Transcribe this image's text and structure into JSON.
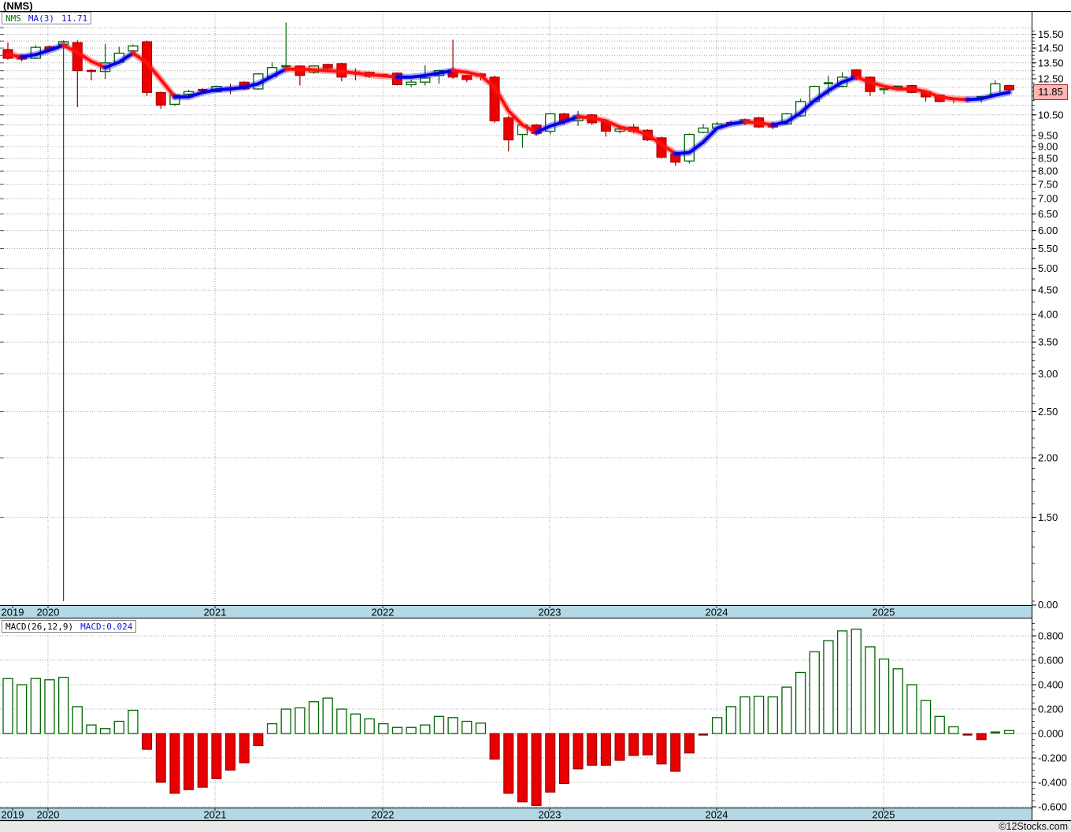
{
  "title": "(NMS)",
  "branding": "©12Stocks.com",
  "price_panel": {
    "legend": {
      "symbol": "NMS",
      "ma_label": "MA(3)",
      "ma_value": "11.71"
    },
    "last_price_badge": "11.85",
    "y_axis_labels": [
      {
        "t": "15.50",
        "v": 15.5
      },
      {
        "t": "14.50",
        "v": 14.5
      },
      {
        "t": "13.50",
        "v": 13.5
      },
      {
        "t": "12.50",
        "v": 12.5
      },
      {
        "t": "10.50",
        "v": 10.5
      },
      {
        "t": "9.50",
        "v": 9.5
      },
      {
        "t": "9.00",
        "v": 9.0
      },
      {
        "t": "8.50",
        "v": 8.5
      },
      {
        "t": "8.00",
        "v": 8.0
      },
      {
        "t": "7.50",
        "v": 7.5
      },
      {
        "t": "7.00",
        "v": 7.0
      },
      {
        "t": "6.50",
        "v": 6.5
      },
      {
        "t": "6.00",
        "v": 6.0
      },
      {
        "t": "5.50",
        "v": 5.5
      },
      {
        "t": "5.00",
        "v": 5.0
      },
      {
        "t": "4.50",
        "v": 4.5
      },
      {
        "t": "4.00",
        "v": 4.0
      },
      {
        "t": "3.50",
        "v": 3.5
      },
      {
        "t": "3.00",
        "v": 3.0
      },
      {
        "t": "2.50",
        "v": 2.5
      },
      {
        "t": "2.00",
        "v": 2.0
      },
      {
        "t": "1.50",
        "v": 1.5
      }
    ],
    "bottom_label": "0.00"
  },
  "macd_panel": {
    "legend_left": "MACD(26,12,9)",
    "legend_right": "MACD:0.024",
    "y_axis_labels": [
      {
        "t": "0.800",
        "v": 0.8
      },
      {
        "t": "0.600",
        "v": 0.6
      },
      {
        "t": "0.400",
        "v": 0.4
      },
      {
        "t": "0.200",
        "v": 0.2
      },
      {
        "t": "0.000",
        "v": 0.0
      },
      {
        "t": "-0.200",
        "v": -0.2
      },
      {
        "t": "-0.400",
        "v": -0.4
      },
      {
        "t": "-0.600",
        "v": -0.6
      }
    ]
  },
  "x_axis": {
    "years": [
      "2019",
      "2020",
      "2021",
      "2022",
      "2023",
      "2024",
      "2025"
    ],
    "tick_x": [
      16,
      61,
      273,
      486,
      698,
      910,
      1122
    ],
    "gridline_x": [
      61,
      273,
      486,
      698,
      910,
      1122
    ]
  },
  "colors": {
    "candle_up_stroke": "#006400",
    "candle_down_fill": "#ee0000",
    "candle_down_stroke": "#990000",
    "ma_up": "#0000e6",
    "ma_down": "#ff0f0f",
    "macd_pos_stroke": "#006400",
    "macd_neg_fill": "#e80000",
    "macd_neg_stroke": "#880000",
    "grid": "#a8a8a8",
    "axis_strip": "#b4d9e6",
    "badge_bg": "#ffb4b4",
    "bottom_band": "#e9e9e9"
  },
  "chart_data": [
    {
      "type": "candlestick",
      "title": "(NMS)",
      "series_name": "NMS",
      "overlay": "MA(3)",
      "overlay_last_value": 11.71,
      "last_close": 11.85,
      "scale": "log",
      "ylim_shown": [
        0.0,
        16.0
      ],
      "grid": true,
      "candles_ohlc": [
        [
          14.4,
          14.9,
          13.7,
          13.8
        ],
        [
          13.95,
          14.05,
          13.6,
          13.75
        ],
        [
          13.8,
          14.7,
          13.75,
          14.55
        ],
        [
          14.6,
          14.7,
          14.25,
          14.35
        ],
        [
          14.75,
          15.05,
          1.0,
          14.95
        ],
        [
          14.9,
          15.05,
          10.9,
          13.0
        ],
        [
          13.0,
          13.1,
          12.4,
          12.95
        ],
        [
          12.95,
          14.8,
          12.5,
          13.5
        ],
        [
          13.55,
          14.6,
          13.5,
          14.15
        ],
        [
          14.3,
          14.75,
          14.2,
          14.65
        ],
        [
          14.95,
          15.05,
          11.5,
          11.7
        ],
        [
          11.7,
          11.75,
          10.8,
          11.0
        ],
        [
          11.05,
          11.65,
          10.95,
          11.55
        ],
        [
          11.6,
          11.85,
          11.5,
          11.75
        ],
        [
          11.85,
          11.95,
          11.65,
          11.75
        ],
        [
          11.75,
          12.1,
          11.7,
          12.05
        ],
        [
          11.95,
          12.2,
          11.6,
          11.9
        ],
        [
          12.3,
          12.35,
          11.85,
          11.9
        ],
        [
          11.9,
          12.85,
          11.85,
          12.8
        ],
        [
          12.65,
          13.55,
          12.6,
          13.2
        ],
        [
          13.2,
          16.4,
          13.1,
          13.3
        ],
        [
          13.3,
          13.35,
          12.1,
          12.7
        ],
        [
          12.9,
          13.35,
          12.8,
          13.3
        ],
        [
          13.4,
          13.45,
          12.9,
          13.15
        ],
        [
          13.45,
          13.5,
          12.35,
          12.6
        ],
        [
          12.9,
          13.15,
          12.4,
          12.85
        ],
        [
          12.9,
          12.95,
          12.55,
          12.65
        ],
        [
          12.75,
          12.8,
          12.6,
          12.65
        ],
        [
          12.85,
          12.9,
          12.1,
          12.15
        ],
        [
          12.15,
          12.45,
          12.0,
          12.3
        ],
        [
          12.3,
          13.35,
          12.1,
          12.55
        ],
        [
          12.7,
          13.05,
          12.2,
          13.0
        ],
        [
          13.05,
          15.1,
          12.5,
          12.6
        ],
        [
          12.7,
          12.75,
          12.3,
          12.45
        ],
        [
          12.8,
          12.85,
          12.4,
          12.65
        ],
        [
          12.6,
          12.7,
          10.1,
          10.2
        ],
        [
          10.35,
          10.45,
          8.8,
          9.3
        ],
        [
          9.55,
          10.1,
          8.95,
          10.0
        ],
        [
          10.0,
          10.05,
          9.5,
          9.6
        ],
        [
          9.7,
          10.6,
          9.55,
          10.55
        ],
        [
          10.55,
          10.6,
          10.0,
          10.15
        ],
        [
          10.2,
          10.7,
          9.95,
          10.45
        ],
        [
          10.5,
          10.55,
          10.0,
          10.1
        ],
        [
          10.15,
          10.2,
          9.45,
          9.7
        ],
        [
          9.7,
          9.9,
          9.6,
          9.8
        ],
        [
          9.9,
          10.05,
          9.6,
          9.7
        ],
        [
          9.75,
          9.8,
          9.25,
          9.3
        ],
        [
          9.4,
          9.45,
          8.5,
          8.55
        ],
        [
          8.7,
          8.75,
          8.2,
          8.35
        ],
        [
          8.4,
          9.6,
          8.3,
          9.55
        ],
        [
          9.65,
          10.05,
          9.6,
          9.85
        ],
        [
          9.85,
          10.15,
          9.8,
          10.05
        ],
        [
          10.1,
          10.2,
          9.95,
          10.05
        ],
        [
          10.1,
          10.3,
          10.0,
          10.25
        ],
        [
          10.35,
          10.4,
          9.85,
          9.9
        ],
        [
          10.05,
          10.15,
          9.8,
          9.9
        ],
        [
          10.05,
          10.6,
          10.0,
          10.55
        ],
        [
          10.45,
          11.35,
          10.4,
          11.2
        ],
        [
          11.2,
          12.1,
          11.15,
          12.05
        ],
        [
          12.15,
          12.7,
          11.55,
          12.25
        ],
        [
          12.05,
          12.9,
          12.0,
          12.6
        ],
        [
          13.05,
          13.1,
          12.4,
          12.5
        ],
        [
          12.6,
          12.65,
          11.5,
          11.75
        ],
        [
          11.85,
          11.95,
          11.6,
          11.9
        ],
        [
          11.95,
          12.1,
          11.9,
          12.05
        ],
        [
          12.1,
          12.15,
          11.65,
          11.7
        ],
        [
          11.75,
          11.8,
          11.2,
          11.45
        ],
        [
          11.55,
          11.6,
          11.15,
          11.2
        ],
        [
          11.25,
          11.4,
          11.1,
          11.35
        ],
        [
          11.35,
          11.4,
          11.2,
          11.3
        ],
        [
          11.35,
          11.5,
          11.15,
          11.45
        ],
        [
          11.6,
          12.4,
          11.55,
          12.2
        ],
        [
          12.1,
          12.15,
          11.8,
          11.85
        ]
      ],
      "ma3_values": [
        14.05,
        13.9,
        14.05,
        14.35,
        14.7,
        14.2,
        13.6,
        13.2,
        13.55,
        14.15,
        13.5,
        12.45,
        11.45,
        11.45,
        11.7,
        11.85,
        11.9,
        12.0,
        12.2,
        12.65,
        13.1,
        13.1,
        13.05,
        13.0,
        12.95,
        12.85,
        12.75,
        12.68,
        12.6,
        12.6,
        12.7,
        12.85,
        13.0,
        12.9,
        12.7,
        12.0,
        10.7,
        10.0,
        9.65,
        9.95,
        10.15,
        10.4,
        10.35,
        10.2,
        9.9,
        9.75,
        9.55,
        9.1,
        8.7,
        8.75,
        9.2,
        9.85,
        10.05,
        10.15,
        10.1,
        10.0,
        10.15,
        10.6,
        11.25,
        11.8,
        12.3,
        12.6,
        12.3,
        12.05,
        11.9,
        11.9,
        11.75,
        11.45,
        11.35,
        11.3,
        11.35,
        11.55,
        11.71
      ],
      "ma3_segment_trend": [
        "",
        "R",
        "B",
        "B",
        "B",
        "R",
        "R",
        "R",
        "B",
        "B",
        "R",
        "R",
        "R",
        "B",
        "B",
        "B",
        "B",
        "B",
        "B",
        "B",
        "B",
        "R",
        "R",
        "R",
        "R",
        "R",
        "R",
        "R",
        "R",
        "B",
        "B",
        "B",
        "B",
        "R",
        "R",
        "R",
        "R",
        "R",
        "R",
        "B",
        "B",
        "B",
        "R",
        "R",
        "R",
        "R",
        "R",
        "R",
        "R",
        "B",
        "B",
        "B",
        "B",
        "B",
        "R",
        "R",
        "B",
        "B",
        "B",
        "B",
        "B",
        "B",
        "R",
        "R",
        "R",
        "R",
        "R",
        "R",
        "R",
        "R",
        "B",
        "B",
        "B"
      ]
    },
    {
      "type": "bar",
      "title": "MACD(26,12,9)",
      "last_label": "MACD:0.024",
      "ylim": [
        -0.61,
        0.94
      ],
      "grid": true,
      "values": [
        0.45,
        0.4,
        0.45,
        0.44,
        0.46,
        0.22,
        0.07,
        0.04,
        0.1,
        0.19,
        -0.13,
        -0.4,
        -0.49,
        -0.46,
        -0.44,
        -0.37,
        -0.3,
        -0.24,
        -0.1,
        0.08,
        0.2,
        0.21,
        0.26,
        0.29,
        0.2,
        0.16,
        0.12,
        0.08,
        0.05,
        0.05,
        0.07,
        0.14,
        0.13,
        0.1,
        0.085,
        -0.21,
        -0.49,
        -0.56,
        -0.59,
        -0.48,
        -0.41,
        -0.29,
        -0.26,
        -0.26,
        -0.22,
        -0.18,
        -0.175,
        -0.25,
        -0.31,
        -0.16,
        -0.01,
        0.13,
        0.22,
        0.3,
        0.305,
        0.3,
        0.38,
        0.5,
        0.67,
        0.76,
        0.84,
        0.855,
        0.71,
        0.61,
        0.53,
        0.4,
        0.27,
        0.14,
        0.055,
        -0.01,
        -0.05,
        0.005,
        0.024
      ]
    }
  ]
}
